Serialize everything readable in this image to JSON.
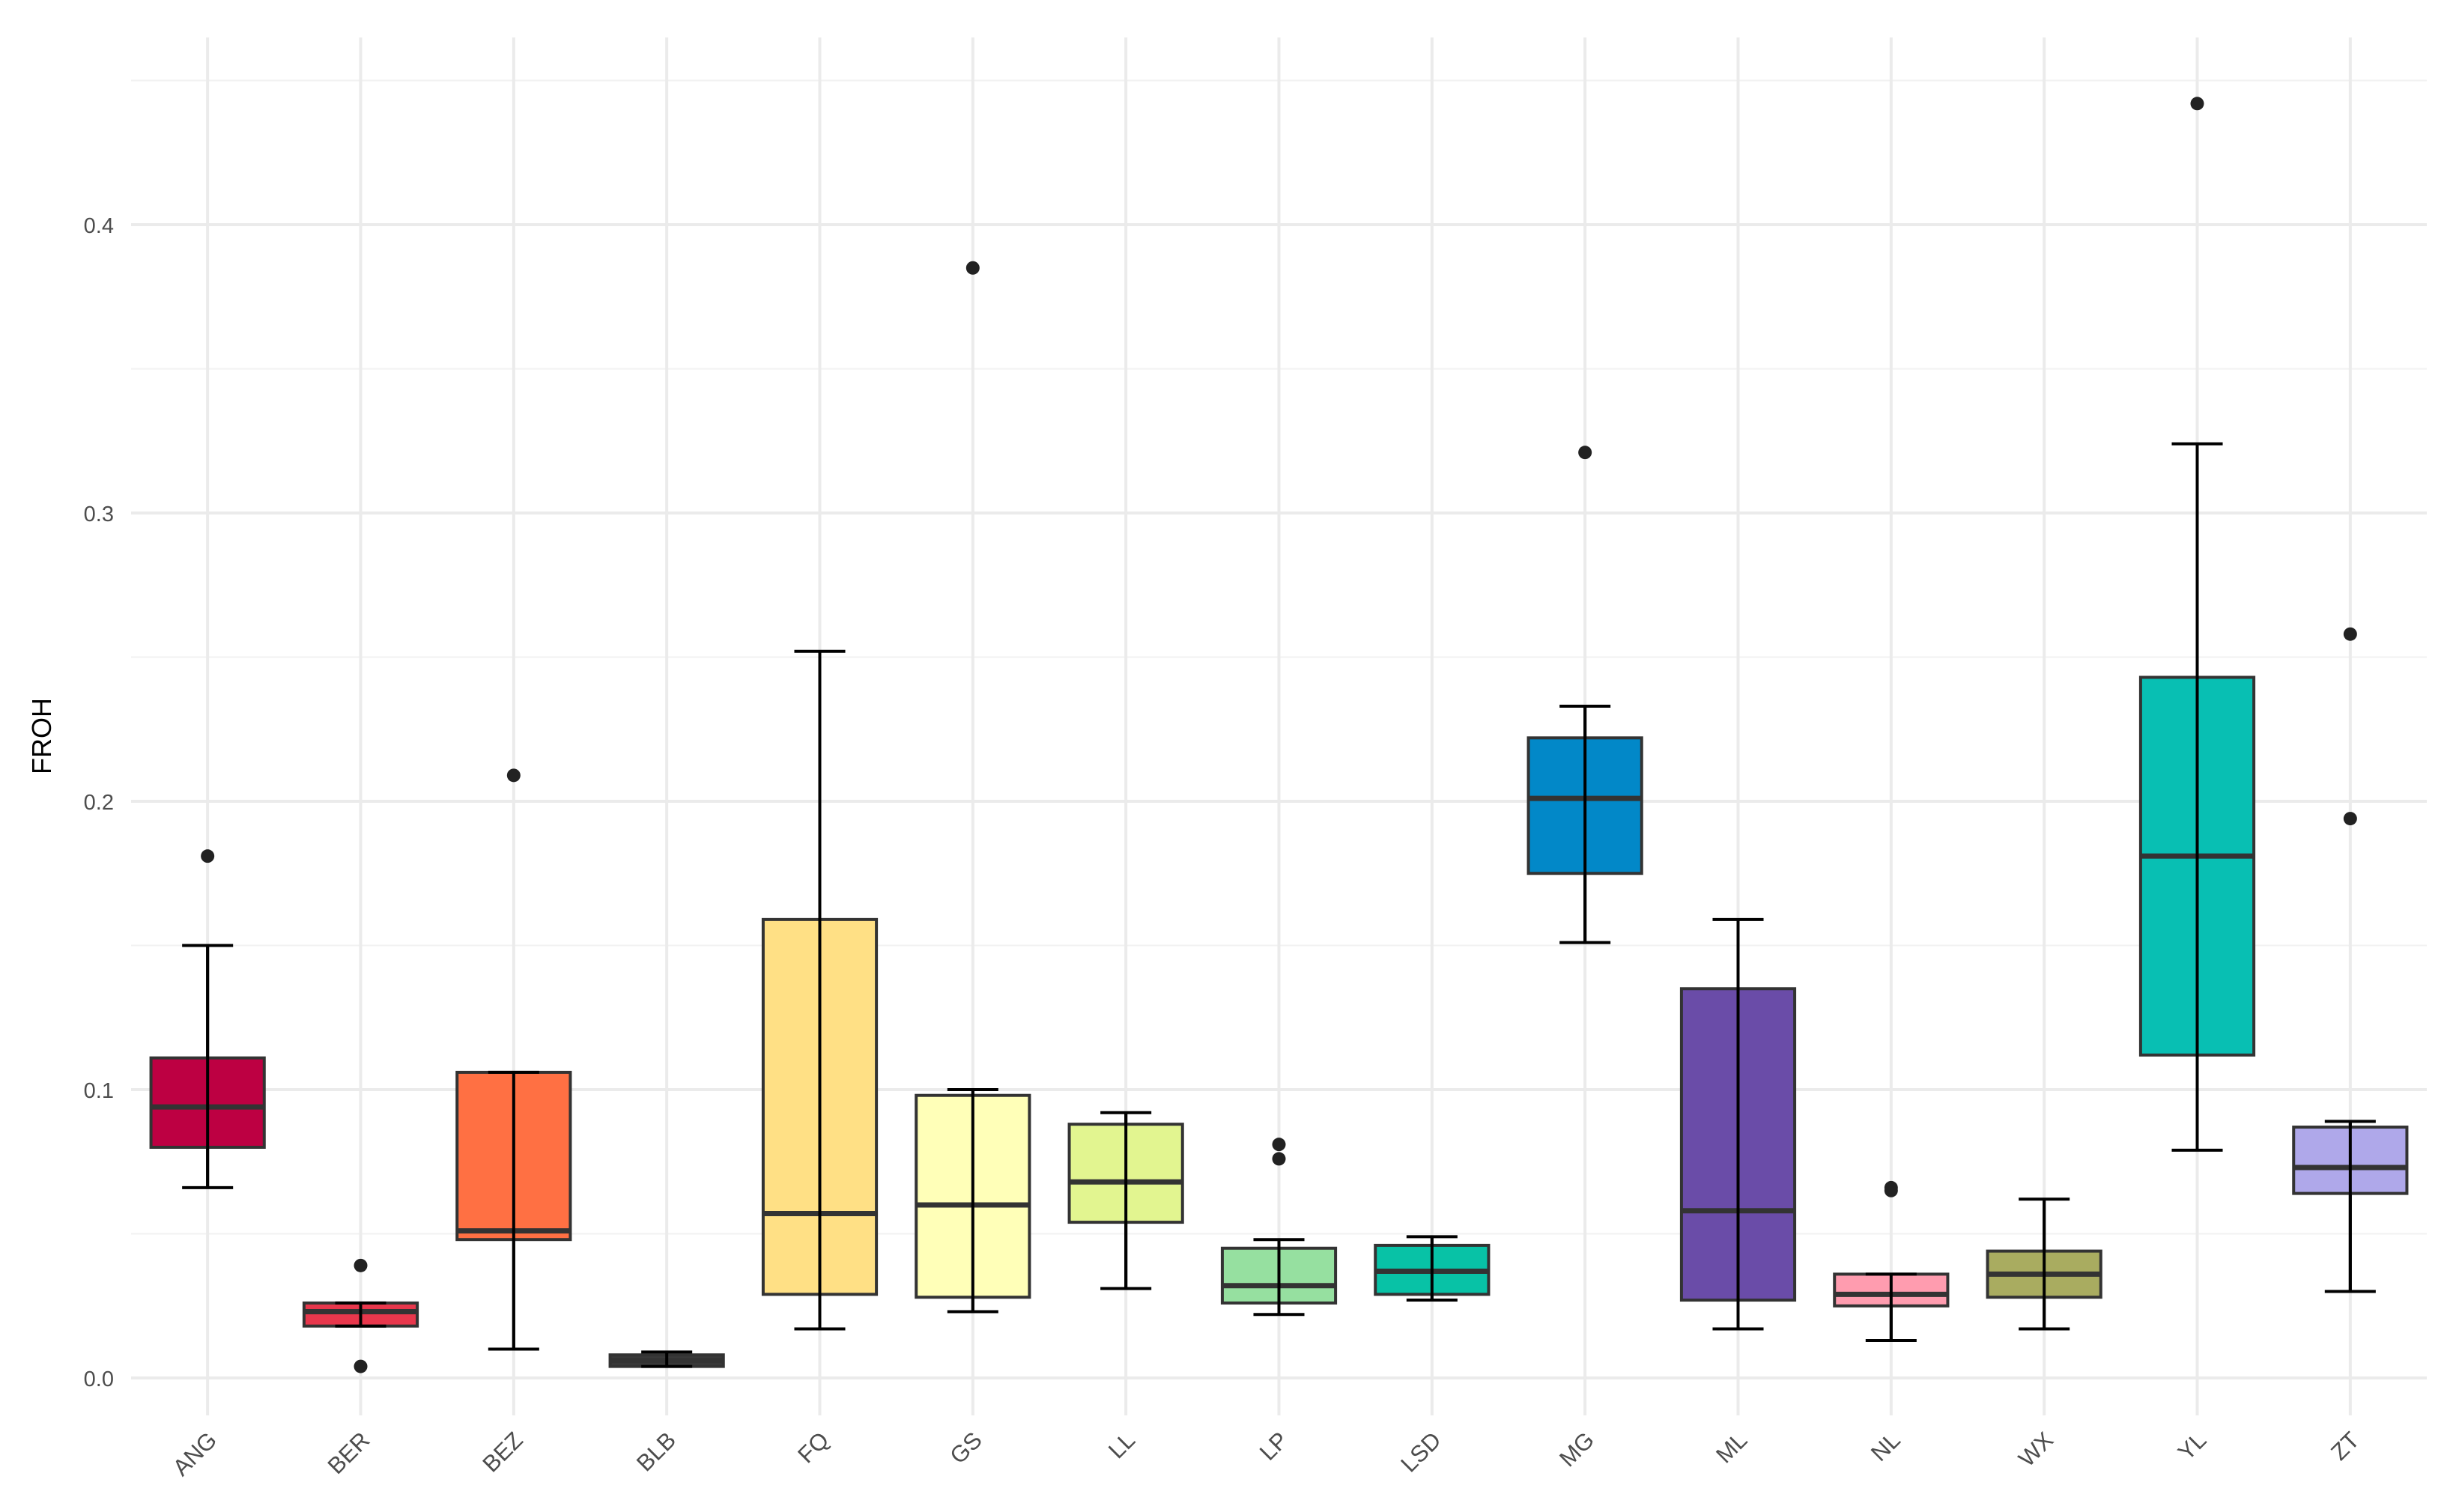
{
  "chart_data": {
    "type": "boxplot",
    "title": "",
    "xlabel": "",
    "ylabel": "FROH",
    "ylim": [
      -0.018,
      0.473
    ],
    "yticks": [
      0.0,
      0.1,
      0.2,
      0.3,
      0.4
    ],
    "ytick_labels": [
      "0.0",
      "0.1",
      "0.2",
      "0.3",
      "0.4"
    ],
    "grid": true,
    "legend": "none",
    "categories": [
      "ANG",
      "BER",
      "BEZ",
      "BLB",
      "FQ",
      "GS",
      "LL",
      "LP",
      "LSD",
      "MG",
      "ML",
      "NL",
      "WX",
      "YL",
      "ZT"
    ],
    "colors": [
      "#BD0042",
      "#E8374C",
      "#FF7043",
      "#3A3A3A",
      "#FFE085",
      "#FFFFB8",
      "#E2F590",
      "#96E0A0",
      "#08C2A6",
      "#0288C8",
      "#6A4CA8",
      "#FF9CAF",
      "#A9AC60",
      "#08BFB3",
      "#AFA8EA"
    ],
    "boxes": [
      {
        "name": "ANG",
        "min": 0.066,
        "q1": 0.08,
        "median": 0.094,
        "q3": 0.111,
        "max": 0.15,
        "outliers": [
          0.181
        ]
      },
      {
        "name": "BER",
        "min": 0.018,
        "q1": 0.018,
        "median": 0.023,
        "q3": 0.026,
        "max": 0.026,
        "outliers": [
          0.039,
          0.004
        ]
      },
      {
        "name": "BEZ",
        "min": 0.01,
        "q1": 0.048,
        "median": 0.051,
        "q3": 0.106,
        "max": 0.106,
        "outliers": [
          0.209
        ]
      },
      {
        "name": "BLB",
        "min": 0.004,
        "q1": 0.004,
        "median": 0.006,
        "q3": 0.008,
        "max": 0.009,
        "outliers": []
      },
      {
        "name": "FQ",
        "min": 0.017,
        "q1": 0.029,
        "median": 0.057,
        "q3": 0.159,
        "max": 0.252,
        "outliers": []
      },
      {
        "name": "GS",
        "min": 0.023,
        "q1": 0.028,
        "median": 0.06,
        "q3": 0.098,
        "max": 0.1,
        "outliers": [
          0.385
        ]
      },
      {
        "name": "LL",
        "min": 0.031,
        "q1": 0.054,
        "median": 0.068,
        "q3": 0.088,
        "max": 0.092,
        "outliers": []
      },
      {
        "name": "LP",
        "min": 0.022,
        "q1": 0.026,
        "median": 0.032,
        "q3": 0.045,
        "max": 0.048,
        "outliers": [
          0.081,
          0.076
        ]
      },
      {
        "name": "LSD",
        "min": 0.027,
        "q1": 0.029,
        "median": 0.037,
        "q3": 0.046,
        "max": 0.049,
        "outliers": []
      },
      {
        "name": "MG",
        "min": 0.151,
        "q1": 0.175,
        "median": 0.201,
        "q3": 0.222,
        "max": 0.233,
        "outliers": [
          0.321
        ]
      },
      {
        "name": "ML",
        "min": 0.017,
        "q1": 0.027,
        "median": 0.058,
        "q3": 0.135,
        "max": 0.159,
        "outliers": []
      },
      {
        "name": "NL",
        "min": 0.013,
        "q1": 0.025,
        "median": 0.029,
        "q3": 0.036,
        "max": 0.036,
        "outliers": [
          0.066,
          0.065
        ]
      },
      {
        "name": "WX",
        "min": 0.017,
        "q1": 0.028,
        "median": 0.036,
        "q3": 0.044,
        "max": 0.062,
        "outliers": []
      },
      {
        "name": "YL",
        "min": 0.079,
        "q1": 0.112,
        "median": 0.181,
        "q3": 0.243,
        "max": 0.324,
        "outliers": [
          0.442
        ]
      },
      {
        "name": "ZT",
        "min": 0.03,
        "q1": 0.064,
        "median": 0.073,
        "q3": 0.087,
        "max": 0.089,
        "outliers": [
          0.258,
          0.194
        ]
      }
    ]
  }
}
